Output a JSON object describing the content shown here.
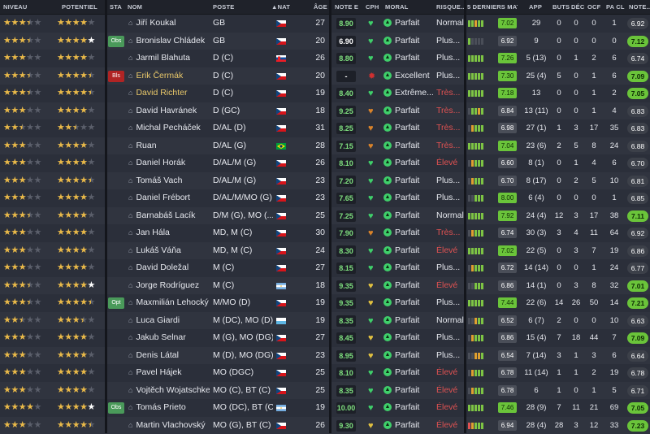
{
  "headers": {
    "niveau": "NIVEAU",
    "potentiel": "POTENTIEL",
    "sta": "STA",
    "nom": "NOM",
    "poste": "POSTE",
    "nat": "NAT",
    "age": "ÂGE",
    "note_e": "NOTE E",
    "cph": "CPH",
    "moral": "MORAL",
    "risque": "RISQUE...",
    "derniers_matchs": "5 DERNIERS MAT...",
    "app": "APP",
    "buts": "BUTS",
    "dec": "DÉC",
    "ocf": "OCF",
    "pa_cl": "PA CL",
    "note_finale": "NOTE..."
  },
  "colors": {
    "green": "#6ac43a",
    "red": "#e05252",
    "gold": "#e9b949"
  },
  "players": [
    {
      "niveau": 3.5,
      "potentiel": 4.0,
      "sta": "",
      "nom": "Jiří Koukal",
      "poste": "GB",
      "nat": "CZE",
      "age": "27",
      "note_e": "8.90",
      "cph": "heart-green",
      "moral": "Parfait",
      "risque": "Normal",
      "risque_red": false,
      "form": [
        "#7dc444",
        "#7dc444",
        "#e0a030",
        "#7dc444",
        "#7dc444"
      ],
      "avg": "7.02",
      "avg_good": true,
      "app": "29",
      "buts": "0",
      "dec": "0",
      "ocf": "0",
      "pa_cl": "1",
      "note": "6.92",
      "note_good": false
    },
    {
      "niveau": 3.5,
      "potentiel": 5.0,
      "sta": "Obs",
      "nom": "Bronislav Chládek",
      "poste": "GB",
      "nat": "CZE",
      "age": "20",
      "note_e": "6.90",
      "cph": "heart-green",
      "moral": "Parfait",
      "risque": "Plus...",
      "risque_red": false,
      "form": [
        "#7dc444",
        "#4a4e58",
        "#4a4e58",
        "#4a4e58",
        "#4a4e58"
      ],
      "avg": "6.92",
      "avg_good": false,
      "app": "9",
      "buts": "0",
      "dec": "0",
      "ocf": "0",
      "pa_cl": "0",
      "note": "7.12",
      "note_good": true
    },
    {
      "niveau": 3.0,
      "potentiel": 4.0,
      "sta": "",
      "nom": "Jarmil Blahuta",
      "poste": "D (C)",
      "nat": "SVK",
      "age": "26",
      "note_e": "8.80",
      "cph": "heart-green",
      "moral": "Parfait",
      "risque": "Plus...",
      "risque_red": false,
      "form": [
        "#7dc444",
        "#7dc444",
        "#7dc444",
        "#7dc444",
        "#7dc444"
      ],
      "avg": "7.26",
      "avg_good": true,
      "app": "5 (13)",
      "buts": "0",
      "dec": "1",
      "ocf": "2",
      "pa_cl": "6",
      "note": "6.74",
      "note_good": false
    },
    {
      "niveau": 3.5,
      "potentiel": 4.5,
      "sta": "Bls",
      "nom": "Erik Čermák",
      "poste": "D (C)",
      "nat": "CZE",
      "age": "20",
      "note_e": "-",
      "cph": "injury",
      "moral": "Excellent",
      "risque": "Plus...",
      "risque_red": false,
      "form": [
        "#7dc444",
        "#7dc444",
        "#7dc444",
        "#7dc444",
        "#7dc444"
      ],
      "avg": "7.30",
      "avg_good": true,
      "app": "25 (4)",
      "buts": "5",
      "dec": "0",
      "ocf": "1",
      "pa_cl": "6",
      "note": "7.09",
      "note_good": true
    },
    {
      "niveau": 3.5,
      "potentiel": 4.5,
      "sta": "",
      "nom": "David Richter",
      "poste": "D (C)",
      "nat": "CZE",
      "age": "19",
      "note_e": "8.40",
      "cph": "heart-green",
      "moral": "Extrême...",
      "risque": "Très...",
      "risque_red": true,
      "form": [
        "#7dc444",
        "#7dc444",
        "#7dc444",
        "#7dc444",
        "#7dc444"
      ],
      "avg": "7.18",
      "avg_good": true,
      "app": "13",
      "buts": "0",
      "dec": "0",
      "ocf": "1",
      "pa_cl": "2",
      "note": "7.05",
      "note_good": true
    },
    {
      "niveau": 3.0,
      "potentiel": 4.0,
      "sta": "",
      "nom": "David Havránek",
      "poste": "D (GC)",
      "nat": "CZE",
      "age": "18",
      "note_e": "9.25",
      "cph": "heart-orange",
      "moral": "Parfait",
      "risque": "Très...",
      "risque_red": true,
      "form": [
        "#4a4e58",
        "#7dc444",
        "#7dc444",
        "#e0a030",
        "#7dc444"
      ],
      "avg": "6.84",
      "avg_good": false,
      "app": "13 (11)",
      "buts": "0",
      "dec": "0",
      "ocf": "1",
      "pa_cl": "4",
      "note": "6.83",
      "note_good": false
    },
    {
      "niveau": 2.5,
      "potentiel": 2.5,
      "sta": "",
      "nom": "Michal Pecháček",
      "poste": "D/AL (D)",
      "nat": "CZE",
      "age": "31",
      "note_e": "8.25",
      "cph": "heart-orange",
      "moral": "Parfait",
      "risque": "Très...",
      "risque_red": true,
      "form": [
        "#4a4e58",
        "#e0a030",
        "#7dc444",
        "#7dc444",
        "#7dc444"
      ],
      "avg": "6.98",
      "avg_good": false,
      "app": "27 (1)",
      "buts": "1",
      "dec": "3",
      "ocf": "17",
      "pa_cl": "35",
      "note": "6.83",
      "note_good": false
    },
    {
      "niveau": 3.0,
      "potentiel": 4.0,
      "sta": "",
      "nom": "Ruan",
      "poste": "D/AL (G)",
      "nat": "BRA",
      "age": "28",
      "note_e": "7.15",
      "cph": "heart-orange",
      "moral": "Parfait",
      "risque": "Très...",
      "risque_red": true,
      "form": [
        "#7dc444",
        "#7dc444",
        "#7dc444",
        "#7dc444",
        "#7dc444"
      ],
      "avg": "7.04",
      "avg_good": true,
      "app": "23 (6)",
      "buts": "2",
      "dec": "5",
      "ocf": "8",
      "pa_cl": "24",
      "note": "6.88",
      "note_good": false
    },
    {
      "niveau": 3.0,
      "potentiel": 4.0,
      "sta": "",
      "nom": "Daniel Horák",
      "poste": "D/AL/M (G)",
      "nat": "CZE",
      "age": "26",
      "note_e": "8.10",
      "cph": "heart-green",
      "moral": "Parfait",
      "risque": "Élevé",
      "risque_red": true,
      "form": [
        "#4a4e58",
        "#e0a030",
        "#7dc444",
        "#7dc444",
        "#7dc444"
      ],
      "avg": "6.60",
      "avg_good": false,
      "app": "8 (1)",
      "buts": "0",
      "dec": "1",
      "ocf": "4",
      "pa_cl": "6",
      "note": "6.70",
      "note_good": false
    },
    {
      "niveau": 3.0,
      "potentiel": 4.5,
      "sta": "",
      "nom": "Tomáš Vach",
      "poste": "D/AL/M (G)",
      "nat": "CZE",
      "age": "23",
      "note_e": "7.20",
      "cph": "heart-green",
      "moral": "Parfait",
      "risque": "Plus...",
      "risque_red": false,
      "form": [
        "#4a4e58",
        "#e0a030",
        "#7dc444",
        "#7dc444",
        "#7dc444"
      ],
      "avg": "6.70",
      "avg_good": false,
      "app": "8 (17)",
      "buts": "0",
      "dec": "2",
      "ocf": "5",
      "pa_cl": "10",
      "note": "6.81",
      "note_good": false
    },
    {
      "niveau": 3.0,
      "potentiel": 4.0,
      "sta": "",
      "nom": "Daniel Frébort",
      "poste": "D/AL/M/MO (G)",
      "nat": "CZE",
      "age": "23",
      "note_e": "7.65",
      "cph": "heart-green",
      "moral": "Parfait",
      "risque": "Plus...",
      "risque_red": false,
      "form": [
        "#4a4e58",
        "#4a4e58",
        "#7dc444",
        "#7dc444",
        "#7dc444"
      ],
      "avg": "8.00",
      "avg_good": true,
      "app": "6 (4)",
      "buts": "0",
      "dec": "0",
      "ocf": "0",
      "pa_cl": "1",
      "note": "6.85",
      "note_good": false
    },
    {
      "niveau": 3.5,
      "potentiel": 4.0,
      "sta": "",
      "nom": "Barnabáš Lacík",
      "poste": "D/M (G), MO (...",
      "nat": "CZE",
      "age": "25",
      "note_e": "7.25",
      "cph": "heart-green",
      "moral": "Parfait",
      "risque": "Normal",
      "risque_red": false,
      "form": [
        "#7dc444",
        "#7dc444",
        "#7dc444",
        "#7dc444",
        "#7dc444"
      ],
      "avg": "7.92",
      "avg_good": true,
      "app": "24 (4)",
      "buts": "12",
      "dec": "3",
      "ocf": "17",
      "pa_cl": "38",
      "note": "7.11",
      "note_good": true
    },
    {
      "niveau": 3.0,
      "potentiel": 4.0,
      "sta": "",
      "nom": "Jan Hála",
      "poste": "MD, M (C)",
      "nat": "CZE",
      "age": "30",
      "note_e": "7.90",
      "cph": "heart-orange",
      "moral": "Parfait",
      "risque": "Très...",
      "risque_red": true,
      "form": [
        "#4a4e58",
        "#e0a030",
        "#7dc444",
        "#7dc444",
        "#7dc444"
      ],
      "avg": "6.74",
      "avg_good": false,
      "app": "30 (3)",
      "buts": "3",
      "dec": "4",
      "ocf": "11",
      "pa_cl": "64",
      "note": "6.92",
      "note_good": false
    },
    {
      "niveau": 3.0,
      "potentiel": 4.0,
      "sta": "",
      "nom": "Lukáš Váňa",
      "poste": "MD, M (C)",
      "nat": "CZE",
      "age": "24",
      "note_e": "8.30",
      "cph": "heart-green",
      "moral": "Parfait",
      "risque": "Élevé",
      "risque_red": true,
      "form": [
        "#7dc444",
        "#7dc444",
        "#7dc444",
        "#7dc444",
        "#7dc444"
      ],
      "avg": "7.02",
      "avg_good": true,
      "app": "22 (5)",
      "buts": "0",
      "dec": "3",
      "ocf": "7",
      "pa_cl": "19",
      "note": "6.86",
      "note_good": false
    },
    {
      "niveau": 3.0,
      "potentiel": 4.0,
      "sta": "",
      "nom": "David Doležal",
      "poste": "M (C)",
      "nat": "CZE",
      "age": "27",
      "note_e": "8.15",
      "cph": "heart-green",
      "moral": "Parfait",
      "risque": "Plus...",
      "risque_red": false,
      "form": [
        "#4a4e58",
        "#e0a030",
        "#7dc444",
        "#7dc444",
        "#7dc444"
      ],
      "avg": "6.72",
      "avg_good": false,
      "app": "14 (14)",
      "buts": "0",
      "dec": "0",
      "ocf": "1",
      "pa_cl": "24",
      "note": "6.77",
      "note_good": false
    },
    {
      "niveau": 3.5,
      "potentiel": 5.0,
      "sta": "",
      "nom": "Jorge Rodríguez",
      "poste": "M (C)",
      "nat": "ARG",
      "age": "18",
      "note_e": "9.35",
      "cph": "heart-yellow",
      "moral": "Parfait",
      "risque": "Élevé",
      "risque_red": true,
      "form": [
        "#4a4e58",
        "#4a4e58",
        "#7dc444",
        "#7dc444",
        "#7dc444"
      ],
      "avg": "6.86",
      "avg_good": false,
      "app": "14 (1)",
      "buts": "0",
      "dec": "3",
      "ocf": "8",
      "pa_cl": "32",
      "note": "7.01",
      "note_good": true
    },
    {
      "niveau": 3.5,
      "potentiel": 4.5,
      "sta": "Opt",
      "nom": "Maxmilián Lehocký",
      "poste": "M/MO (D)",
      "nat": "CZE",
      "age": "19",
      "note_e": "9.35",
      "cph": "heart-yellow",
      "moral": "Parfait",
      "risque": "Plus...",
      "risque_red": false,
      "form": [
        "#7dc444",
        "#7dc444",
        "#7dc444",
        "#7dc444",
        "#7dc444"
      ],
      "avg": "7.44",
      "avg_good": true,
      "app": "22 (6)",
      "buts": "14",
      "dec": "26",
      "ocf": "50",
      "pa_cl": "14",
      "note": "7.21",
      "note_good": true
    },
    {
      "niveau": 2.5,
      "potentiel": 3.5,
      "sta": "",
      "nom": "Luca Giardi",
      "poste": "M (DC), MO (D)",
      "nat": "SMR",
      "age": "19",
      "note_e": "8.35",
      "cph": "heart-green",
      "moral": "Parfait",
      "risque": "Normal",
      "risque_red": false,
      "form": [
        "#4a4e58",
        "#4a4e58",
        "#e0a030",
        "#7dc444",
        "#7dc444"
      ],
      "avg": "6.52",
      "avg_good": false,
      "app": "6 (7)",
      "buts": "2",
      "dec": "0",
      "ocf": "0",
      "pa_cl": "10",
      "note": "6.63",
      "note_good": false
    },
    {
      "niveau": 3.0,
      "potentiel": 4.0,
      "sta": "",
      "nom": "Jakub Selnar",
      "poste": "M (G), MO (DG)",
      "nat": "CZE",
      "age": "27",
      "note_e": "8.45",
      "cph": "heart-yellow",
      "moral": "Parfait",
      "risque": "Plus...",
      "risque_red": false,
      "form": [
        "#4a4e58",
        "#e0a030",
        "#7dc444",
        "#7dc444",
        "#7dc444"
      ],
      "avg": "6.86",
      "avg_good": false,
      "app": "15 (4)",
      "buts": "7",
      "dec": "18",
      "ocf": "44",
      "pa_cl": "7",
      "note": "7.09",
      "note_good": true
    },
    {
      "niveau": 3.0,
      "potentiel": 4.0,
      "sta": "",
      "nom": "Denis Látal",
      "poste": "M (D), MO (DG),...",
      "nat": "CZE",
      "age": "23",
      "note_e": "8.95",
      "cph": "heart-yellow",
      "moral": "Parfait",
      "risque": "Plus...",
      "risque_red": false,
      "form": [
        "#4a4e58",
        "#4a4e58",
        "#e0a030",
        "#e0a030",
        "#7dc444"
      ],
      "avg": "6.54",
      "avg_good": false,
      "app": "7 (14)",
      "buts": "3",
      "dec": "1",
      "ocf": "3",
      "pa_cl": "6",
      "note": "6.64",
      "note_good": false
    },
    {
      "niveau": 3.0,
      "potentiel": 4.0,
      "sta": "",
      "nom": "Pavel Hájek",
      "poste": "MO (DGC)",
      "nat": "CZE",
      "age": "25",
      "note_e": "8.10",
      "cph": "heart-green",
      "moral": "Parfait",
      "risque": "Élevé",
      "risque_red": true,
      "form": [
        "#4a4e58",
        "#e0a030",
        "#7dc444",
        "#7dc444",
        "#7dc444"
      ],
      "avg": "6.78",
      "avg_good": false,
      "app": "11 (14)",
      "buts": "1",
      "dec": "1",
      "ocf": "2",
      "pa_cl": "19",
      "note": "6.78",
      "note_good": false
    },
    {
      "niveau": 3.0,
      "potentiel": 4.0,
      "sta": "",
      "nom": "Vojtěch Wojatschke",
      "poste": "MO (C), BT (C)",
      "nat": "CZE",
      "age": "25",
      "note_e": "8.35",
      "cph": "heart-green",
      "moral": "Parfait",
      "risque": "Élevé",
      "risque_red": true,
      "form": [
        "#4a4e58",
        "#e0a030",
        "#7dc444",
        "#7dc444",
        "#7dc444"
      ],
      "avg": "6.78",
      "avg_good": false,
      "app": "6",
      "buts": "1",
      "dec": "0",
      "ocf": "1",
      "pa_cl": "5",
      "note": "6.71",
      "note_good": false
    },
    {
      "niveau": 4.0,
      "potentiel": 5.0,
      "sta": "Obs",
      "nom": "Tomás Prieto",
      "poste": "MO (DC), BT (C)",
      "nat": "ARG",
      "age": "19",
      "note_e": "10.00",
      "cph": "heart-green",
      "moral": "Parfait",
      "risque": "Élevé",
      "risque_red": true,
      "form": [
        "#7dc444",
        "#7dc444",
        "#7dc444",
        "#7dc444",
        "#7dc444"
      ],
      "avg": "7.46",
      "avg_good": true,
      "app": "28 (9)",
      "buts": "7",
      "dec": "11",
      "ocf": "21",
      "pa_cl": "69",
      "note": "7.05",
      "note_good": true
    },
    {
      "niveau": 3.0,
      "potentiel": 4.5,
      "sta": "",
      "nom": "Martin Vlachovský",
      "poste": "MO (G), BT (C)",
      "nat": "CZE",
      "age": "26",
      "note_e": "9.30",
      "cph": "heart-yellow",
      "moral": "Parfait",
      "risque": "Élevé",
      "risque_red": true,
      "form": [
        "#e05252",
        "#e0a030",
        "#7dc444",
        "#7dc444",
        "#7dc444"
      ],
      "avg": "6.94",
      "avg_good": false,
      "app": "28 (4)",
      "buts": "28",
      "dec": "3",
      "ocf": "12",
      "pa_cl": "33",
      "note": "7.23",
      "note_good": true
    }
  ]
}
